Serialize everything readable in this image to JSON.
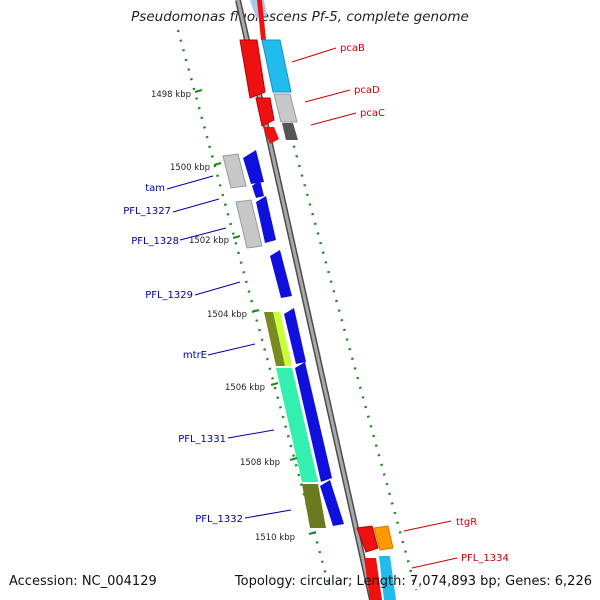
{
  "map": {
    "title": "Pseudomonas fluorescens Pf-5, complete genome",
    "accession_text": "Accession: NC_004129",
    "summary_text": "Topology: circular; Length: 7,074,893 bp; Genes: 6,226",
    "colors": {
      "backbone": "#8a8a8a",
      "tick": "#1f8a1f",
      "forward_label": "#cc0000",
      "reverse_label": "#0000aa",
      "gene_red": "#ee1111",
      "gene_blue": "#1010dd",
      "gene_cyan": "#22bbee",
      "gene_gray": "#c8c8c8",
      "gene_darkgray": "#666666",
      "gene_olive": "#7a8a22",
      "gene_aqua": "#33f0b0",
      "gene_orange": "#ff9900"
    },
    "tick_labels": [
      "1498 kbp",
      "1500 kbp",
      "1502 kbp",
      "1504 kbp",
      "1506 kbp",
      "1508 kbp",
      "1510 kbp"
    ],
    "gene_labels_forward": [
      "pcaB",
      "pcaD",
      "pcaC",
      "ttgR",
      "PFL_1334"
    ],
    "gene_labels_reverse": [
      "tam",
      "PFL_1327",
      "PFL_1328",
      "PFL_1329",
      "mtrE",
      "PFL_1331",
      "PFL_1332"
    ]
  }
}
